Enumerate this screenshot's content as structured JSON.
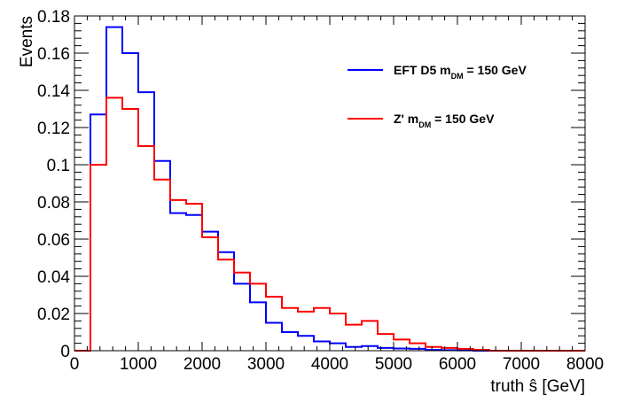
{
  "chart_data": {
    "type": "histogram",
    "xlabel": "truth ŝ [GeV]",
    "ylabel": "Events",
    "xlim": [
      0,
      8000
    ],
    "ylim": [
      0,
      0.18
    ],
    "x_ticks": [
      "0",
      "1000",
      "2000",
      "3000",
      "4000",
      "5000",
      "6000",
      "7000",
      "8000"
    ],
    "y_ticks": [
      "0",
      "0.02",
      "0.04",
      "0.06",
      "0.08",
      "0.1",
      "0.12",
      "0.14",
      "0.16",
      "0.18"
    ],
    "grid": false,
    "legend_position": "top-right",
    "bin_edges": [
      0,
      250,
      500,
      750,
      1000,
      1250,
      1500,
      1750,
      2000,
      2250,
      2500,
      2750,
      3000,
      3250,
      3500,
      3750,
      4000,
      4250,
      4500,
      4750,
      5000,
      5250,
      5500,
      5750,
      6000,
      6250,
      6500,
      6750,
      7000,
      7250,
      7500,
      7750,
      8000
    ],
    "series": [
      {
        "legend_main": "EFT D5 m",
        "legend_sub": "DM",
        "legend_tail": " = 150 GeV",
        "color": "#0000ff",
        "values": [
          0,
          0.127,
          0.174,
          0.16,
          0.139,
          0.102,
          0.074,
          0.073,
          0.064,
          0.053,
          0.036,
          0.026,
          0.015,
          0.01,
          0.008,
          0.005,
          0.004,
          0.002,
          0.0025,
          0.0015,
          0.0012,
          0.001,
          0.0005,
          0.0003,
          0.0002,
          0,
          0,
          0,
          0,
          0,
          0,
          0
        ]
      },
      {
        "legend_main": "Z' m",
        "legend_sub": "DM",
        "legend_tail": " = 150 GeV",
        "color": "#ff0000",
        "values": [
          0,
          0.1,
          0.136,
          0.13,
          0.11,
          0.092,
          0.081,
          0.079,
          0.061,
          0.049,
          0.042,
          0.036,
          0.029,
          0.023,
          0.021,
          0.023,
          0.02,
          0.014,
          0.016,
          0.009,
          0.006,
          0.004,
          0.002,
          0.0015,
          0.001,
          0.0005,
          0,
          0,
          0,
          0,
          0,
          0
        ]
      }
    ]
  }
}
